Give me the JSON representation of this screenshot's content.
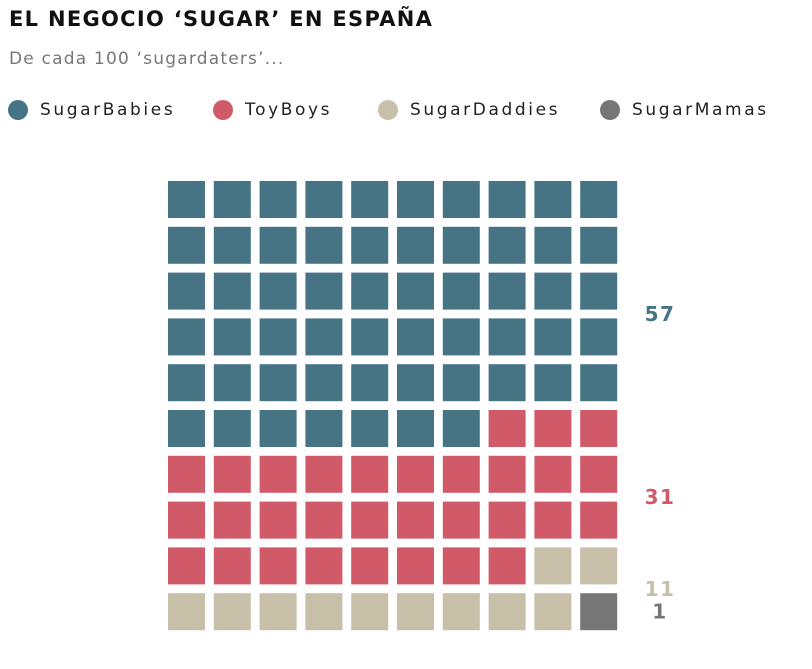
{
  "title": "EL NEGOCIO ‘SUGAR’ EN ESPAÑA",
  "subtitle": "De cada 100 ‘sugardaters’...",
  "legend": [
    {
      "label": "SugarBabies",
      "color": "#467485"
    },
    {
      "label": "ToyBoys",
      "color": "#d05a68"
    },
    {
      "label": "SugarDaddies",
      "color": "#c8bfa9"
    },
    {
      "label": "SugarMamas",
      "color": "#767676"
    }
  ],
  "chart_data": {
    "type": "waffle",
    "total": 100,
    "columns": 10,
    "categories": [
      "SugarBabies",
      "ToyBoys",
      "SugarDaddies",
      "SugarMamas"
    ],
    "values": [
      57,
      31,
      11,
      1
    ],
    "value_labels": [
      "57",
      "31",
      "11",
      "1"
    ],
    "colors": [
      "#467485",
      "#d05a68",
      "#c8bfa9",
      "#767676"
    ]
  }
}
